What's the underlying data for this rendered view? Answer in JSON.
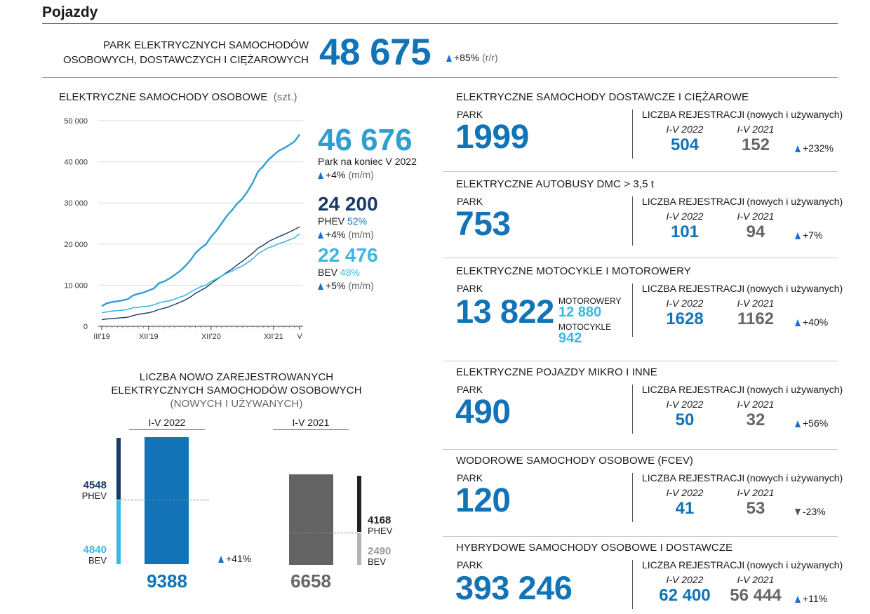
{
  "page_title": "Pojazdy",
  "header": {
    "label_line1": "PARK ELEKTRYCZNYCH SAMOCHODÓW",
    "label_line2": "OSOBOWYCH, DOSTAWCZYCH I CIĘŻAROWYCH",
    "value": "48 675",
    "change": "+85%",
    "change_unit": "(r/r)"
  },
  "line_chart": {
    "title": "ELEKTRYCZNE SAMOCHODY OSOBOWE",
    "unit": "(szt.)",
    "total": {
      "value": "46 676",
      "caption": "Park na koniec V 2022",
      "change": "+4%",
      "change_unit": "(m/m)"
    },
    "phev": {
      "value": "24 200",
      "label": "PHEV",
      "share": "52%",
      "change": "+4%",
      "change_unit": "(m/m)"
    },
    "bev": {
      "value": "22 476",
      "label": "BEV",
      "share": "48%",
      "change": "+5%",
      "change_unit": "(m/m)"
    }
  },
  "chart_data": [
    {
      "type": "line",
      "ylim": [
        0,
        50000
      ],
      "yticks": [
        "50 000",
        "40 000",
        "30 000",
        "20 000",
        "10 000",
        "0"
      ],
      "xticks": [
        "III'19",
        "XII'19",
        "XII'20",
        "XII'21",
        "V"
      ],
      "x_months": 39,
      "grid": true,
      "colors": {
        "total": "#2f9fd0",
        "phev": "#173a66",
        "bev": "#3ab8e0"
      },
      "series": [
        {
          "key": "total",
          "values": [
            4900,
            5600,
            5900,
            6100,
            6300,
            6600,
            7500,
            7900,
            8200,
            8700,
            9200,
            10500,
            10900,
            11600,
            12500,
            13400,
            14600,
            16000,
            17800,
            19000,
            19900,
            21800,
            23200,
            25000,
            26800,
            28200,
            29800,
            31000,
            32800,
            34900,
            37600,
            38900,
            40500,
            41600,
            42700,
            43300,
            44100,
            44900,
            46676
          ]
        },
        {
          "key": "phev",
          "values": [
            1600,
            1800,
            1900,
            2000,
            2100,
            2200,
            2600,
            2900,
            3100,
            3300,
            3600,
            4100,
            4400,
            4800,
            5300,
            5800,
            6400,
            7100,
            8000,
            8700,
            9400,
            10400,
            11300,
            12200,
            13100,
            13900,
            14900,
            15800,
            16800,
            17800,
            19000,
            19700,
            20600,
            21200,
            21800,
            22300,
            22900,
            23500,
            24200
          ]
        },
        {
          "key": "bev",
          "values": [
            3300,
            3500,
            3700,
            3800,
            3900,
            4100,
            4500,
            4600,
            4800,
            4900,
            5200,
            5700,
            6000,
            6200,
            6600,
            7100,
            7500,
            8300,
            9000,
            9600,
            10000,
            10900,
            11500,
            12200,
            12900,
            13400,
            14100,
            14700,
            15500,
            16400,
            17600,
            18400,
            19100,
            19500,
            20100,
            20500,
            21000,
            21500,
            22476
          ]
        }
      ]
    },
    {
      "type": "bar",
      "categories": [
        "I-V 2022",
        "I-V 2021"
      ],
      "series": [
        {
          "name": "PHEV",
          "values": [
            4548,
            4168
          ]
        },
        {
          "name": "BEV",
          "values": [
            4840,
            2490
          ]
        }
      ],
      "totals": [
        9388,
        6658
      ]
    }
  ],
  "reg_chart": {
    "title_line1": "LICZBA NOWO ZAREJESTROWANYCH",
    "title_line2": "ELEKTRYCZNYCH SAMOCHODÓW OSOBOWYCH",
    "title_line3": "(NOWYCH I UŻYWANYCH)",
    "period_a": "I-V 2022",
    "period_b": "I-V 2021",
    "a_phev_value": "4548",
    "a_phev_label": "PHEV",
    "a_bev_value": "4840",
    "a_bev_label": "BEV",
    "a_total": "9388",
    "b_phev_value": "4168",
    "b_phev_label": "PHEV",
    "b_bev_value": "2490",
    "b_bev_label": "BEV",
    "b_total": "6658",
    "change": "+41%"
  },
  "reg_label": "LICZBA REJESTRACJI",
  "reg_sub": "(nowych i używanych)",
  "park_label": "PARK",
  "col_a": "I-V 2022",
  "col_b": "I-V 2021",
  "sections": [
    {
      "title": "ELEKTRYCZNE SAMOCHODY DOSTAWCZE I CIĘŻAROWE",
      "title_suffix": "",
      "park": "1999",
      "a": "504",
      "b": "152",
      "change": "+232%",
      "dir": "up"
    },
    {
      "title": "ELEKTRYCZNE AUTOBUSY",
      "title_suffix": "DMC > 3,5 t",
      "park": "753",
      "a": "101",
      "b": "94",
      "change": "+7%",
      "dir": "up"
    },
    {
      "title": "ELEKTRYCZNE MOTOCYKLE I MOTOROWERY",
      "title_suffix": "",
      "park": "13 822",
      "a": "1628",
      "b": "1162",
      "change": "+40%",
      "dir": "up",
      "sub1_label": "MOTOROWERY",
      "sub1_value": "12 880",
      "sub2_label": "MOTOCYKLE",
      "sub2_value": "942"
    },
    {
      "title": "ELEKTRYCZNE POJAZDY MIKRO I INNE",
      "title_suffix": "",
      "park": "490",
      "a": "50",
      "b": "32",
      "change": "+56%",
      "dir": "up"
    },
    {
      "title": "WODOROWE SAMOCHODY OSOBOWE (FCEV)",
      "title_suffix": "",
      "park": "120",
      "a": "41",
      "b": "53",
      "change": "-23%",
      "dir": "down"
    },
    {
      "title": "HYBRYDOWE SAMOCHODY OSOBOWE I DOSTAWCZE",
      "title_suffix": "",
      "park": "393 246",
      "a": "62 400",
      "b": "56 444",
      "change": "+11%",
      "dir": "up"
    }
  ]
}
